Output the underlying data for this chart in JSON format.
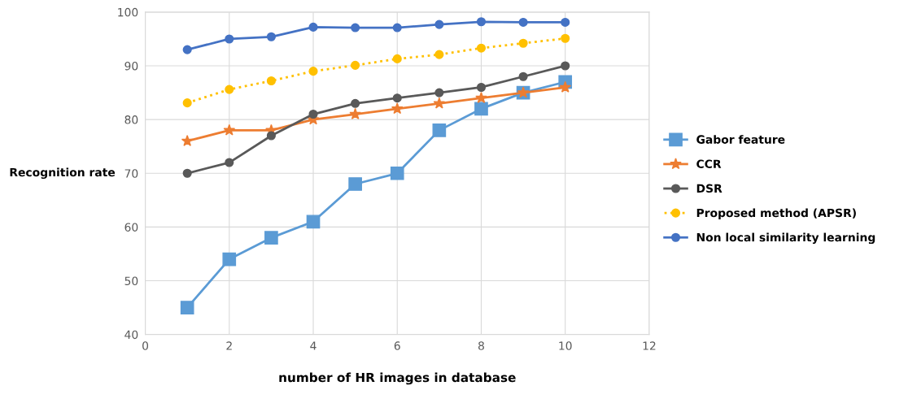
{
  "chart_data": {
    "type": "line",
    "xlabel": "number of HR images in database",
    "ylabel": "Recognition rate",
    "x": [
      1,
      2,
      3,
      4,
      5,
      6,
      7,
      8,
      9,
      10
    ],
    "series": [
      {
        "name": "Gabor feature",
        "color": "#5b9bd5",
        "marker": "square",
        "values": [
          45,
          54,
          58,
          61,
          68,
          70,
          78,
          82,
          85,
          87
        ]
      },
      {
        "name": "CCR",
        "color": "#ed7d31",
        "marker": "star",
        "values": [
          76,
          78,
          78,
          80,
          81,
          82,
          83,
          84,
          85,
          86
        ]
      },
      {
        "name": "DSR",
        "color": "#595959",
        "marker": "circle",
        "values": [
          70,
          72,
          77,
          81,
          83,
          84,
          85,
          86,
          88,
          90
        ]
      },
      {
        "name": "Proposed method (APSR)",
        "color": "#ffc000",
        "marker": "circle",
        "line_style": "dotted",
        "values": [
          83.1,
          85.6,
          87.2,
          89,
          90.1,
          91.3,
          92.1,
          93.3,
          94.2,
          95.1
        ]
      },
      {
        "name": "Non local similarity learning",
        "color": "#4472c4",
        "marker": "circle",
        "values": [
          93,
          95,
          95.4,
          97.2,
          97.1,
          97.1,
          97.7,
          98.2,
          98.1,
          98.1
        ]
      }
    ],
    "xlim": [
      0,
      12
    ],
    "xticks": [
      0,
      2,
      4,
      6,
      8,
      10,
      12
    ],
    "ylim": [
      40,
      100
    ],
    "yticks": [
      40,
      50,
      60,
      70,
      80,
      90,
      100
    ],
    "grid": true,
    "legend": "right"
  }
}
